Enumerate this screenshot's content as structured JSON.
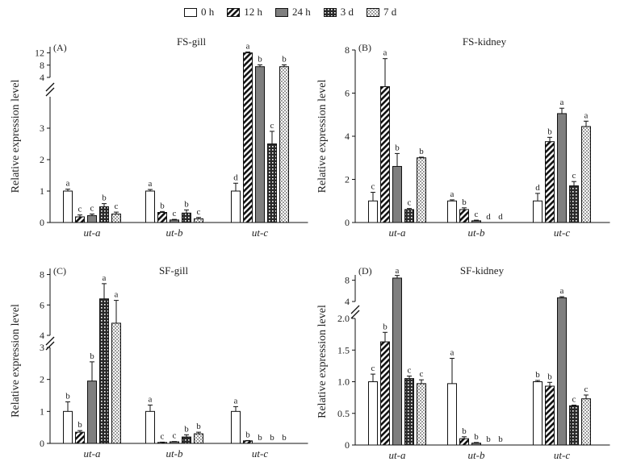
{
  "legend": [
    "0 h",
    "12 h",
    "24 h",
    "3 d",
    "7 d"
  ],
  "chart_data": [
    {
      "type": "bar",
      "panel": "(A)",
      "title": "FS-gill",
      "ylabel": "Relative expression level",
      "categories": [
        "ut-a",
        "ut-b",
        "ut-c"
      ],
      "y_ticks": [
        "0",
        "1",
        "2",
        "3",
        "4",
        "8",
        "12"
      ],
      "y_axis_break": [
        4,
        8
      ],
      "ylim": [
        0,
        12
      ],
      "series": [
        {
          "name": "0 h",
          "values": [
            1.0,
            1.0,
            1.0
          ],
          "errors": [
            0.06,
            0.05,
            0.25
          ],
          "letters": [
            "a",
            "a",
            "d"
          ]
        },
        {
          "name": "12 h",
          "values": [
            0.18,
            0.32,
            12.0
          ],
          "errors": [
            0.06,
            0.03,
            0.3
          ],
          "letters": [
            "c",
            "b",
            "a"
          ]
        },
        {
          "name": "24 h",
          "values": [
            0.22,
            0.08,
            7.5
          ],
          "errors": [
            0.05,
            0.02,
            0.6
          ],
          "letters": [
            "c",
            "c",
            "b"
          ]
        },
        {
          "name": "3 d",
          "values": [
            0.5,
            0.3,
            2.5
          ],
          "errors": [
            0.1,
            0.1,
            0.4
          ],
          "letters": [
            "b",
            "b",
            "c"
          ]
        },
        {
          "name": "7 d",
          "values": [
            0.27,
            0.12,
            7.5
          ],
          "errors": [
            0.06,
            0.04,
            0.6
          ],
          "letters": [
            "c",
            "c",
            "b"
          ]
        }
      ]
    },
    {
      "type": "bar",
      "panel": "(B)",
      "title": "FS-kidney",
      "ylabel": "Relative expression level",
      "categories": [
        "ut-a",
        "ut-b",
        "ut-c"
      ],
      "y_ticks": [
        "0",
        "2",
        "4",
        "6",
        "8"
      ],
      "ylim": [
        0,
        8
      ],
      "series": [
        {
          "name": "0 h",
          "values": [
            1.0,
            1.0,
            1.0
          ],
          "errors": [
            0.4,
            0.05,
            0.35
          ],
          "letters": [
            "c",
            "a",
            "d"
          ]
        },
        {
          "name": "12 h",
          "values": [
            6.3,
            0.6,
            3.75
          ],
          "errors": [
            1.3,
            0.08,
            0.2
          ],
          "letters": [
            "a",
            "b",
            "b"
          ]
        },
        {
          "name": "24 h",
          "values": [
            2.6,
            0.08,
            5.05
          ],
          "errors": [
            0.6,
            0.03,
            0.25
          ],
          "letters": [
            "b",
            "c",
            "a"
          ]
        },
        {
          "name": "3 d",
          "values": [
            0.6,
            0.0,
            1.7
          ],
          "errors": [
            0.05,
            0.0,
            0.2
          ],
          "letters": [
            "c",
            "d",
            "c"
          ]
        },
        {
          "name": "7 d",
          "values": [
            3.0,
            0.0,
            4.45
          ],
          "errors": [
            0.03,
            0.0,
            0.25
          ],
          "letters": [
            "b",
            "d",
            "a"
          ]
        }
      ]
    },
    {
      "type": "bar",
      "panel": "(C)",
      "title": "SF-gill",
      "ylabel": "Relative expression level",
      "categories": [
        "ut-a",
        "ut-b",
        "ut-c"
      ],
      "y_ticks": [
        "0",
        "1",
        "2",
        "3",
        "4",
        "6",
        "8"
      ],
      "y_axis_break": [
        3,
        4
      ],
      "ylim": [
        0,
        8
      ],
      "series": [
        {
          "name": "0 h",
          "values": [
            1.0,
            1.0,
            1.0
          ],
          "errors": [
            0.3,
            0.2,
            0.15
          ],
          "letters": [
            "b",
            "a",
            "a"
          ]
        },
        {
          "name": "12 h",
          "values": [
            0.35,
            0.03,
            0.08
          ],
          "errors": [
            0.05,
            0.01,
            0.01
          ],
          "letters": [
            "b",
            "c",
            "b"
          ]
        },
        {
          "name": "24 h",
          "values": [
            1.95,
            0.05,
            0.0
          ],
          "errors": [
            0.6,
            0.01,
            0.0
          ],
          "letters": [
            "b",
            "c",
            "b"
          ]
        },
        {
          "name": "3 d",
          "values": [
            6.4,
            0.2,
            0.0
          ],
          "errors": [
            1.0,
            0.07,
            0.0
          ],
          "letters": [
            "a",
            "b",
            "b"
          ]
        },
        {
          "name": "7 d",
          "values": [
            4.8,
            0.3,
            0.0
          ],
          "errors": [
            1.5,
            0.05,
            0.0
          ],
          "letters": [
            "a",
            "b",
            "b"
          ]
        }
      ]
    },
    {
      "type": "bar",
      "panel": "(D)",
      "title": "SF-kidney",
      "ylabel": "Relative expression level",
      "categories": [
        "ut-a",
        "ut-b",
        "ut-c"
      ],
      "y_ticks": [
        "0",
        "0.5",
        "1.0",
        "1.5",
        "2.0",
        "4",
        "8"
      ],
      "y_axis_break": [
        2.0,
        4
      ],
      "ylim": [
        0,
        8
      ],
      "series": [
        {
          "name": "0 h",
          "values": [
            1.0,
            0.97,
            1.0
          ],
          "errors": [
            0.12,
            0.4,
            0.02
          ],
          "letters": [
            "c",
            "a",
            "b"
          ]
        },
        {
          "name": "12 h",
          "values": [
            1.63,
            0.1,
            0.93
          ],
          "errors": [
            0.15,
            0.03,
            0.06
          ],
          "letters": [
            "b",
            "b",
            "b"
          ]
        },
        {
          "name": "24 h",
          "values": [
            8.4,
            0.03,
            4.7
          ],
          "errors": [
            0.5,
            0.01,
            0.2
          ],
          "letters": [
            "a",
            "b",
            "a"
          ]
        },
        {
          "name": "3 d",
          "values": [
            1.05,
            0.0,
            0.62
          ],
          "errors": [
            0.04,
            0.0,
            0.01
          ],
          "letters": [
            "c",
            "b",
            "c"
          ]
        },
        {
          "name": "7 d",
          "values": [
            0.97,
            0.0,
            0.73
          ],
          "errors": [
            0.06,
            0.0,
            0.06
          ],
          "letters": [
            "c",
            "b",
            "c"
          ]
        }
      ]
    }
  ]
}
